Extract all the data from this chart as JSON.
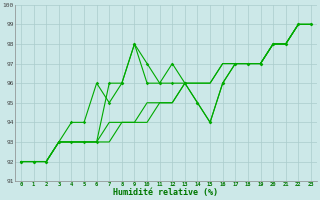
{
  "xlabel": "Humidité relative (%)",
  "bg_color": "#cce8e8",
  "grid_color": "#aacccc",
  "line_color": "#00aa00",
  "xlim": [
    -0.5,
    23.5
  ],
  "ylim": [
    91,
    100
  ],
  "xticks": [
    0,
    1,
    2,
    3,
    4,
    5,
    6,
    7,
    8,
    9,
    10,
    11,
    12,
    13,
    14,
    15,
    16,
    17,
    18,
    19,
    20,
    21,
    22,
    23
  ],
  "yticks": [
    91,
    92,
    93,
    94,
    95,
    96,
    97,
    98,
    99,
    100
  ],
  "series": [
    [
      92,
      92,
      92,
      93,
      94,
      94,
      96,
      95,
      96,
      98,
      96,
      96,
      97,
      96,
      95,
      94,
      96,
      97,
      97,
      97,
      98,
      98,
      99,
      99
    ],
    [
      92,
      92,
      92,
      93,
      93,
      93,
      93,
      93,
      94,
      94,
      94,
      95,
      95,
      96,
      96,
      96,
      97,
      97,
      97,
      97,
      98,
      98,
      99,
      99
    ],
    [
      92,
      92,
      92,
      93,
      93,
      93,
      93,
      94,
      94,
      94,
      95,
      95,
      95,
      96,
      96,
      96,
      97,
      97,
      97,
      97,
      98,
      98,
      99,
      99
    ],
    [
      92,
      92,
      92,
      93,
      93,
      93,
      93,
      96,
      96,
      98,
      97,
      96,
      96,
      96,
      95,
      94,
      96,
      97,
      97,
      97,
      98,
      98,
      99,
      99
    ]
  ]
}
